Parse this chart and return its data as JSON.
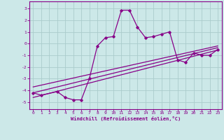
{
  "xlabel": "Windchill (Refroidissement éolien,°C)",
  "bg_color": "#cce8e8",
  "line_color": "#880088",
  "grid_color": "#aacccc",
  "xlim": [
    -0.5,
    23.5
  ],
  "ylim": [
    -5.6,
    3.6
  ],
  "yticks": [
    -5,
    -4,
    -3,
    -2,
    -1,
    0,
    1,
    2,
    3
  ],
  "xticks": [
    0,
    1,
    2,
    3,
    4,
    5,
    6,
    7,
    8,
    9,
    10,
    11,
    12,
    13,
    14,
    15,
    16,
    17,
    18,
    19,
    20,
    21,
    22,
    23
  ],
  "main_line_x": [
    0,
    1,
    3,
    4,
    5,
    6,
    7,
    8,
    9,
    10,
    11,
    12,
    13,
    14,
    15,
    16,
    17,
    18,
    19,
    20,
    21,
    22,
    23
  ],
  "main_line_y": [
    -4.2,
    -4.4,
    -4.1,
    -4.6,
    -4.8,
    -4.8,
    -3.0,
    -0.2,
    0.5,
    0.6,
    2.85,
    2.85,
    1.4,
    0.5,
    0.6,
    0.8,
    1.0,
    -1.4,
    -1.6,
    -0.8,
    -1.0,
    -1.0,
    -0.5
  ],
  "reg_line1_x": [
    0,
    23
  ],
  "reg_line1_y": [
    -4.6,
    -0.55
  ],
  "reg_line2_x": [
    0,
    23
  ],
  "reg_line2_y": [
    -4.2,
    -0.35
  ],
  "reg_line3_x": [
    0,
    23
  ],
  "reg_line3_y": [
    -3.7,
    -0.2
  ]
}
